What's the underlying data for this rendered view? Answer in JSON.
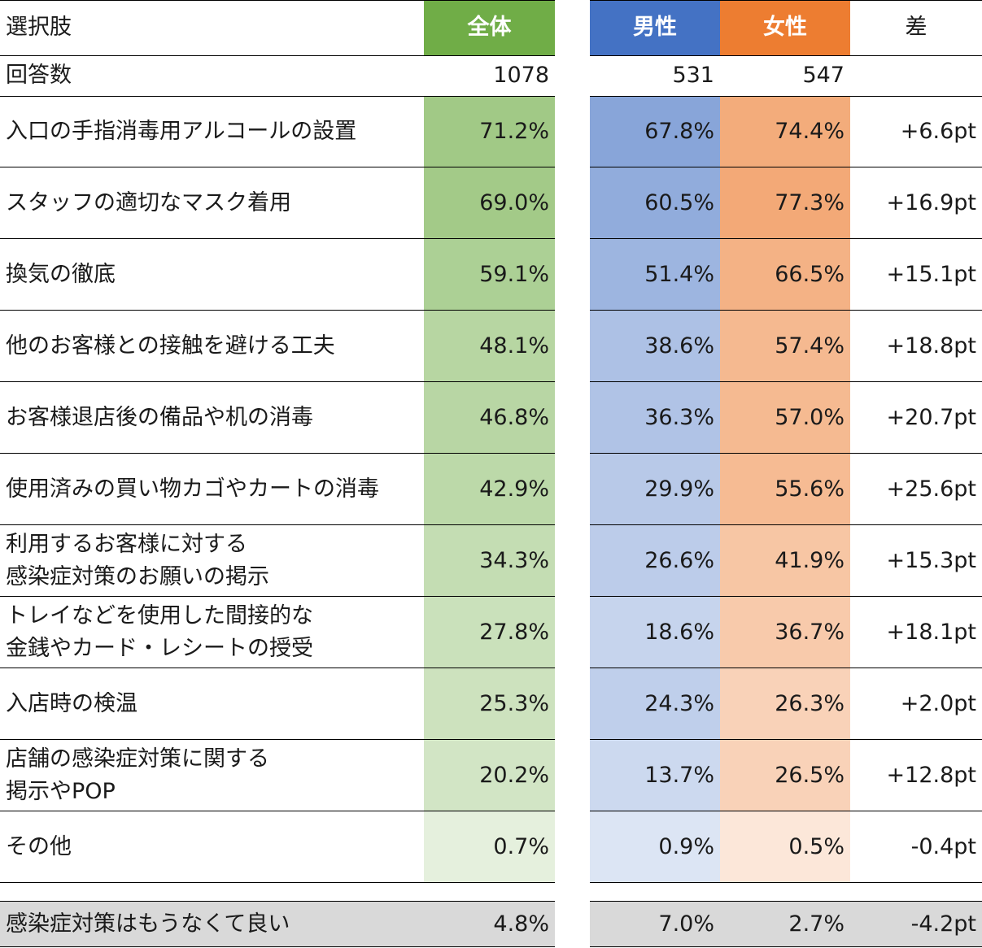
{
  "chart_data": {
    "type": "table",
    "headers": {
      "label": "選択肢",
      "all": "全体",
      "male": "男性",
      "female": "女性",
      "diff": "差"
    },
    "counts": {
      "label": "回答数",
      "all": "1078",
      "male": "531",
      "female": "547",
      "diff": ""
    },
    "rows": [
      {
        "label": "入口の手指消毒用アルコールの設置",
        "all": "71.2%",
        "male": "67.8%",
        "female": "74.4%",
        "diff": "+6.6pt",
        "all_v": 71.2,
        "male_v": 67.8,
        "female_v": 74.4
      },
      {
        "label": "スタッフの適切なマスク着用",
        "all": "69.0%",
        "male": "60.5%",
        "female": "77.3%",
        "diff": "+16.9pt",
        "all_v": 69.0,
        "male_v": 60.5,
        "female_v": 77.3
      },
      {
        "label": "換気の徹底",
        "all": "59.1%",
        "male": "51.4%",
        "female": "66.5%",
        "diff": "+15.1pt",
        "all_v": 59.1,
        "male_v": 51.4,
        "female_v": 66.5
      },
      {
        "label": "他のお客様との接触を避ける工夫",
        "all": "48.1%",
        "male": "38.6%",
        "female": "57.4%",
        "diff": "+18.8pt",
        "all_v": 48.1,
        "male_v": 38.6,
        "female_v": 57.4
      },
      {
        "label": "お客様退店後の備品や机の消毒",
        "all": "46.8%",
        "male": "36.3%",
        "female": "57.0%",
        "diff": "+20.7pt",
        "all_v": 46.8,
        "male_v": 36.3,
        "female_v": 57.0
      },
      {
        "label": "使用済みの買い物カゴやカートの消毒",
        "all": "42.9%",
        "male": "29.9%",
        "female": "55.6%",
        "diff": "+25.6pt",
        "all_v": 42.9,
        "male_v": 29.9,
        "female_v": 55.6
      },
      {
        "label": "利用するお客様に対する\n感染症対策のお願いの掲示",
        "all": "34.3%",
        "male": "26.6%",
        "female": "41.9%",
        "diff": "+15.3pt",
        "all_v": 34.3,
        "male_v": 26.6,
        "female_v": 41.9
      },
      {
        "label": "トレイなどを使用した間接的な\n金銭やカード・レシートの授受",
        "all": "27.8%",
        "male": "18.6%",
        "female": "36.7%",
        "diff": "+18.1pt",
        "all_v": 27.8,
        "male_v": 18.6,
        "female_v": 36.7
      },
      {
        "label": "入店時の検温",
        "all": "25.3%",
        "male": "24.3%",
        "female": "26.3%",
        "diff": "+2.0pt",
        "all_v": 25.3,
        "male_v": 24.3,
        "female_v": 26.3
      },
      {
        "label": "店舗の感染症対策に関する\n掲示やPOP",
        "all": "20.2%",
        "male": "13.7%",
        "female": "26.5%",
        "diff": "+12.8pt",
        "all_v": 20.2,
        "male_v": 13.7,
        "female_v": 26.5
      },
      {
        "label": "その他",
        "all": "0.7%",
        "male": "0.9%",
        "female": "0.5%",
        "diff": "-0.4pt",
        "all_v": 0.7,
        "male_v": 0.9,
        "female_v": 0.5
      }
    ],
    "footer": {
      "label": "感染症対策はもうなくて良い",
      "all": "4.8%",
      "male": "7.0%",
      "female": "2.7%",
      "diff": "-4.2pt"
    }
  },
  "colors": {
    "all_header": "#70ad47",
    "male_header": "#4472c4",
    "female_header": "#ed7d31",
    "footer_bg": "#d9d9d9"
  }
}
